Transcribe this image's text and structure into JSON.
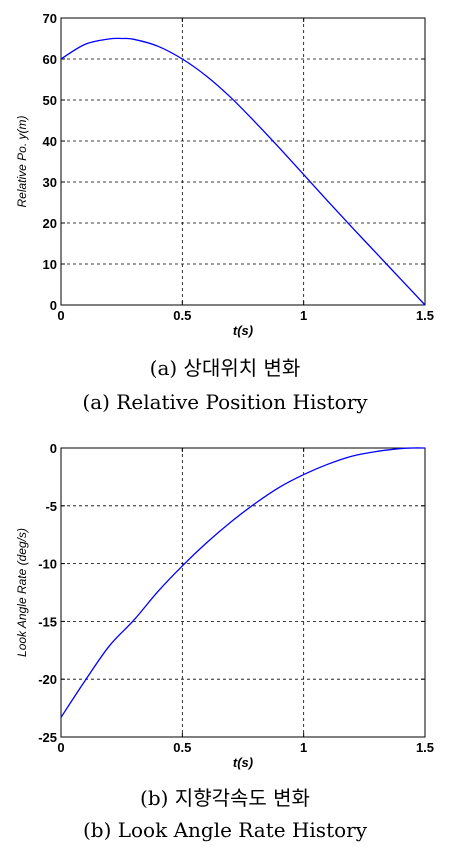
{
  "chart_data": [
    {
      "type": "line",
      "xlabel": "t(s)",
      "ylabel": "Relative Po. y(m)",
      "xlim": [
        0,
        1.5
      ],
      "ylim": [
        0,
        70
      ],
      "xticks": [
        "0",
        "0.5",
        "1",
        "1.5"
      ],
      "yticks": [
        "0",
        "10",
        "20",
        "30",
        "40",
        "50",
        "60",
        "70"
      ],
      "grid": true,
      "color": "#0000ff",
      "x": [
        0,
        0.1,
        0.2,
        0.25,
        0.3,
        0.4,
        0.5,
        0.6,
        0.7,
        0.8,
        0.9,
        1.0,
        1.1,
        1.2,
        1.3,
        1.4,
        1.5
      ],
      "y": [
        60,
        63.6,
        64.9,
        65,
        64.8,
        63.1,
        60,
        55.8,
        50.6,
        44.6,
        38.3,
        31.8,
        25.3,
        18.9,
        12.6,
        6.3,
        0
      ],
      "caption_ko": "(a) 상대위치 변화",
      "caption_en": "(a) Relative Position History"
    },
    {
      "type": "line",
      "xlabel": "t(s)",
      "ylabel": "Look Angle Rate (deg/s)",
      "xlim": [
        0,
        1.5
      ],
      "ylim": [
        -25,
        0
      ],
      "xticks": [
        "0",
        "0.5",
        "1",
        "1.5"
      ],
      "yticks": [
        "-25",
        "-20",
        "-15",
        "-10",
        "-5",
        "0"
      ],
      "grid": true,
      "color": "#0000ff",
      "x": [
        0,
        0.1,
        0.2,
        0.3,
        0.4,
        0.5,
        0.6,
        0.7,
        0.8,
        0.9,
        1.0,
        1.1,
        1.2,
        1.3,
        1.4,
        1.45,
        1.5
      ],
      "y": [
        -23.3,
        -20.1,
        -17.1,
        -14.9,
        -12.4,
        -10.2,
        -8.2,
        -6.4,
        -4.8,
        -3.4,
        -2.3,
        -1.4,
        -0.7,
        -0.3,
        -0.05,
        0,
        0
      ],
      "caption_ko": "(b) 지향각속도 변화",
      "caption_en": "(b) Look Angle Rate History"
    }
  ]
}
